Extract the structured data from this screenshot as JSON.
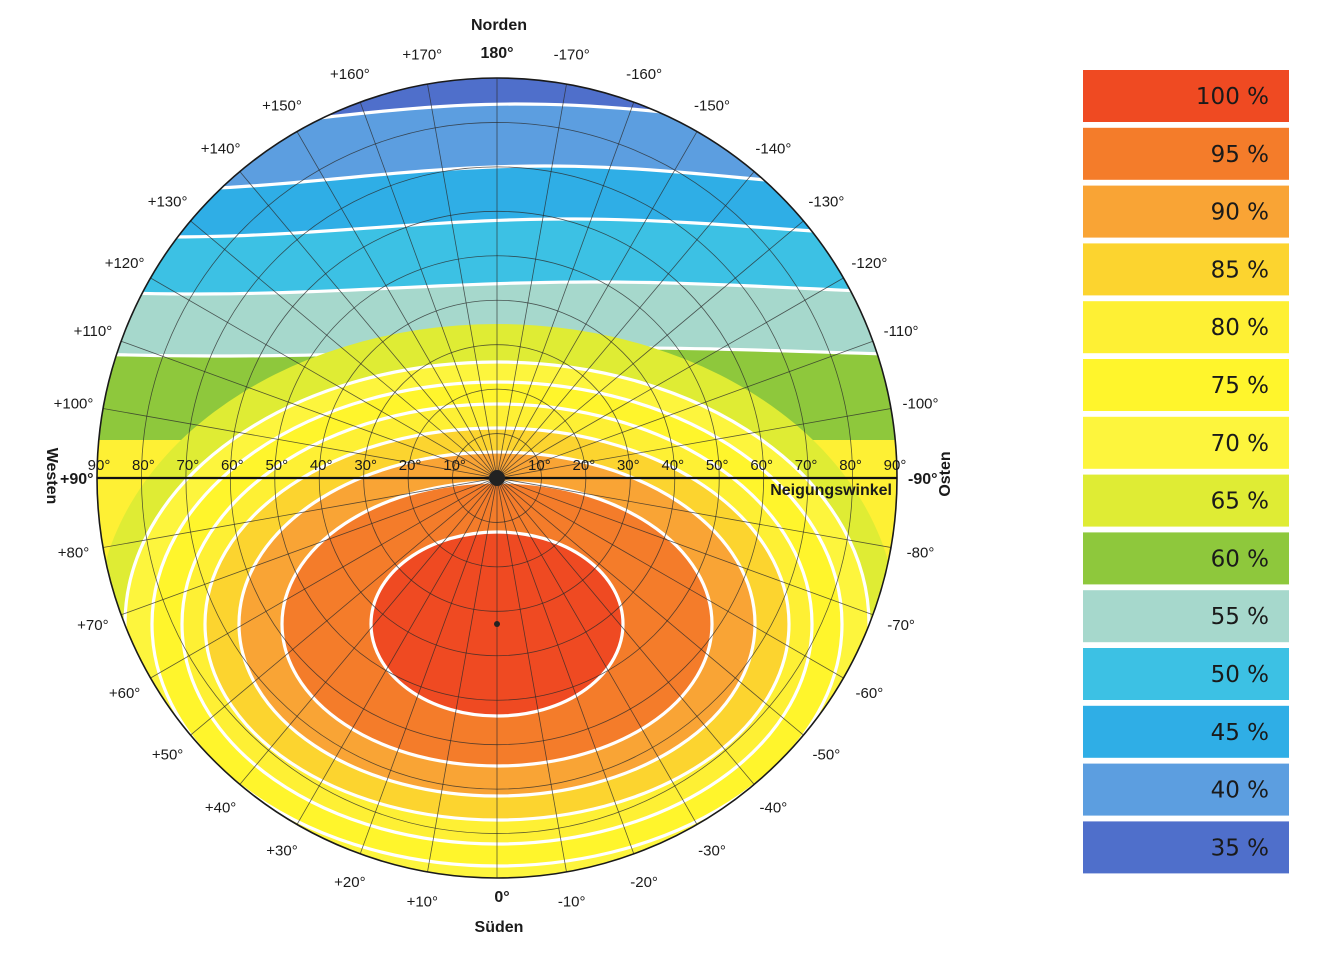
{
  "chart_data": {
    "type": "heatmap",
    "directions": {
      "north": "Norden",
      "south": "Süden",
      "west": "Westen",
      "east": "Osten",
      "north_angle": "180°",
      "south_angle": "0°",
      "west_angle": "+90°",
      "east_angle": "-90°"
    },
    "tilt_axis_label": "Neigungswinkel",
    "tilt_labels_west": [
      "90°",
      "80°",
      "70°",
      "60°",
      "50°",
      "40°",
      "30°",
      "20°",
      "10°"
    ],
    "tilt_labels_east": [
      "10°",
      "20°",
      "30°",
      "40°",
      "50°",
      "60°",
      "70°",
      "80°",
      "90°"
    ],
    "azimuth_labels": [
      {
        "deg": 10,
        "text": "+10°"
      },
      {
        "deg": 20,
        "text": "+20°"
      },
      {
        "deg": 30,
        "text": "+30°"
      },
      {
        "deg": 40,
        "text": "+40°"
      },
      {
        "deg": 50,
        "text": "+50°"
      },
      {
        "deg": 60,
        "text": "+60°"
      },
      {
        "deg": 70,
        "text": "+70°"
      },
      {
        "deg": 80,
        "text": "+80°"
      },
      {
        "deg": 100,
        "text": "+100°"
      },
      {
        "deg": 110,
        "text": "+110°"
      },
      {
        "deg": 120,
        "text": "+120°"
      },
      {
        "deg": 130,
        "text": "+130°"
      },
      {
        "deg": 140,
        "text": "+140°"
      },
      {
        "deg": 150,
        "text": "+150°"
      },
      {
        "deg": 160,
        "text": "+160°"
      },
      {
        "deg": 170,
        "text": "+170°"
      },
      {
        "deg": -10,
        "text": "-10°"
      },
      {
        "deg": -20,
        "text": "-20°"
      },
      {
        "deg": -30,
        "text": "-30°"
      },
      {
        "deg": -40,
        "text": "-40°"
      },
      {
        "deg": -50,
        "text": "-50°"
      },
      {
        "deg": -60,
        "text": "-60°"
      },
      {
        "deg": -70,
        "text": "-70°"
      },
      {
        "deg": -80,
        "text": "-80°"
      },
      {
        "deg": -100,
        "text": "-100°"
      },
      {
        "deg": -110,
        "text": "-110°"
      },
      {
        "deg": -120,
        "text": "-120°"
      },
      {
        "deg": -130,
        "text": "-130°"
      },
      {
        "deg": -140,
        "text": "-140°"
      },
      {
        "deg": -150,
        "text": "-150°"
      },
      {
        "deg": -160,
        "text": "-160°"
      },
      {
        "deg": -170,
        "text": "-170°"
      }
    ],
    "optimum": {
      "azimuth": 0,
      "tilt": 35,
      "value": 100
    },
    "legend": [
      {
        "label": "100 %",
        "value": 100,
        "color": "#ef4a22"
      },
      {
        "label": "95 %",
        "value": 95,
        "color": "#f47c2a"
      },
      {
        "label": "90 %",
        "value": 90,
        "color": "#f9a435"
      },
      {
        "label": "85 %",
        "value": 85,
        "color": "#fcd42f"
      },
      {
        "label": "80 %",
        "value": 80,
        "color": "#fef034"
      },
      {
        "label": "75 %",
        "value": 75,
        "color": "#fff52c"
      },
      {
        "label": "70 %",
        "value": 70,
        "color": "#fdf53d"
      },
      {
        "label": "65 %",
        "value": 65,
        "color": "#dfec34"
      },
      {
        "label": "60 %",
        "value": 60,
        "color": "#8ec83c"
      },
      {
        "label": "55 %",
        "value": 55,
        "color": "#a6d8cc"
      },
      {
        "label": "50 %",
        "value": 50,
        "color": "#3cc1e4"
      },
      {
        "label": "45 %",
        "value": 45,
        "color": "#2faee6"
      },
      {
        "label": "40 %",
        "value": 40,
        "color": "#5c9ee0"
      },
      {
        "label": "35 %",
        "value": 35,
        "color": "#4f6fcb"
      }
    ]
  }
}
